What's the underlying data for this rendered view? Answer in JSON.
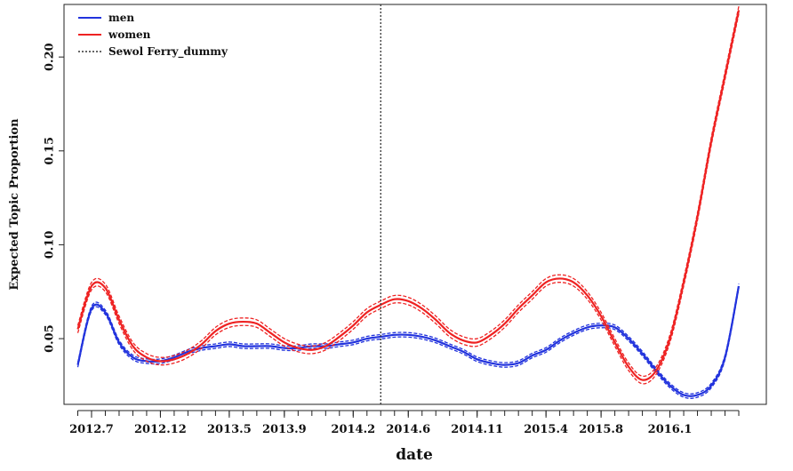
{
  "chart_data": {
    "type": "line",
    "xlabel": "date",
    "ylabel": "Expected Topic Proportion",
    "x_tick_labels": [
      "2012.7",
      "2012.12",
      "2013.5",
      "2013.9",
      "2014.2",
      "2014.6",
      "2014.11",
      "2015.4",
      "2015.8",
      "2016.1"
    ],
    "y_tick_labels": [
      "0.05",
      "0.10",
      "0.15",
      "0.20"
    ],
    "y_ticks": [
      0.05,
      0.1,
      0.15,
      0.2
    ],
    "ylim": [
      0.015,
      0.228
    ],
    "xlim": [
      "2012-05",
      "2016-08"
    ],
    "grid": false,
    "legend_position": "top-left",
    "x": [
      "2012-06",
      "2012-07",
      "2012-08",
      "2012-09",
      "2012-10",
      "2012-11",
      "2012-12",
      "2013-01",
      "2013-02",
      "2013-03",
      "2013-04",
      "2013-05",
      "2013-06",
      "2013-07",
      "2013-08",
      "2013-09",
      "2013-10",
      "2013-11",
      "2013-12",
      "2014-01",
      "2014-02",
      "2014-03",
      "2014-04",
      "2014-05",
      "2014-06",
      "2014-07",
      "2014-08",
      "2014-09",
      "2014-10",
      "2014-11",
      "2014-12",
      "2015-01",
      "2015-02",
      "2015-03",
      "2015-04",
      "2015-05",
      "2015-06",
      "2015-07",
      "2015-08",
      "2015-09",
      "2015-10",
      "2015-11",
      "2015-12",
      "2016-01",
      "2016-02",
      "2016-03",
      "2016-04",
      "2016-05",
      "2016-06"
    ],
    "series": [
      {
        "name": "men",
        "color": "#2233dd",
        "values": [
          0.036,
          0.066,
          0.064,
          0.048,
          0.04,
          0.038,
          0.038,
          0.04,
          0.043,
          0.045,
          0.046,
          0.047,
          0.046,
          0.046,
          0.046,
          0.045,
          0.045,
          0.046,
          0.046,
          0.047,
          0.048,
          0.05,
          0.051,
          0.052,
          0.052,
          0.051,
          0.049,
          0.046,
          0.043,
          0.039,
          0.037,
          0.036,
          0.037,
          0.041,
          0.044,
          0.049,
          0.053,
          0.056,
          0.057,
          0.056,
          0.05,
          0.042,
          0.033,
          0.025,
          0.02,
          0.02,
          0.025,
          0.04,
          0.078
        ],
        "band": 0.0012
      },
      {
        "name": "women",
        "color": "#ee2222",
        "values": [
          0.055,
          0.078,
          0.077,
          0.06,
          0.046,
          0.04,
          0.038,
          0.039,
          0.042,
          0.047,
          0.054,
          0.058,
          0.059,
          0.058,
          0.053,
          0.048,
          0.045,
          0.044,
          0.046,
          0.051,
          0.057,
          0.064,
          0.068,
          0.071,
          0.07,
          0.066,
          0.06,
          0.053,
          0.049,
          0.048,
          0.052,
          0.058,
          0.066,
          0.073,
          0.08,
          0.082,
          0.08,
          0.073,
          0.062,
          0.048,
          0.035,
          0.028,
          0.033,
          0.05,
          0.08,
          0.115,
          0.155,
          0.19,
          0.225
        ],
        "band": 0.002
      },
      {
        "name": "Sewol Ferry_dummy",
        "color": "#333333",
        "style": "dotted",
        "x": "2014-04"
      }
    ]
  }
}
